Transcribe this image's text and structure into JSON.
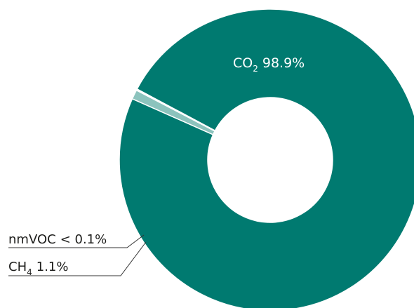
{
  "chart_data": {
    "type": "pie",
    "donut": true,
    "slices": [
      {
        "label": "CO₂",
        "formula": "CO",
        "subscript": "2",
        "value": 98.9,
        "value_label": "98.9%",
        "color": "#007a70"
      },
      {
        "label": "CH₄",
        "formula": "CH",
        "subscript": "4",
        "value": 1.1,
        "value_label": "1.1%",
        "color": "#8cc3bd"
      },
      {
        "label": "nmVOC",
        "formula": "nmVOC",
        "value": 0.05,
        "value_label": "< 0.1%",
        "color": "#bcdcd8"
      }
    ]
  }
}
